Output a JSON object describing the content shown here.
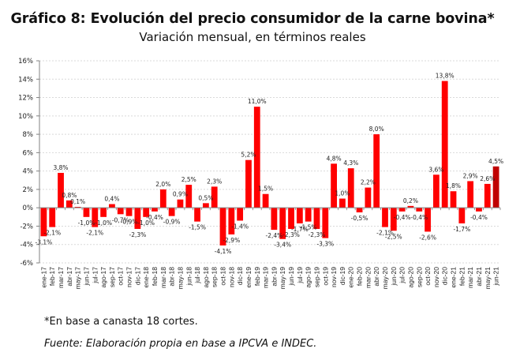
{
  "header": {
    "title": "Gráfico 8: Evolución del precio consumidor de la carne bovina*",
    "subtitle": "Variación mensual, en términos reales"
  },
  "footer": {
    "note": "*En base a canasta 18 cortes.",
    "source": "Fuente: Elaboración propia en base a IPCVA e INDEC."
  },
  "colors": {
    "bar": "#ff0000",
    "highlight_bar": "#c00000",
    "gridline": "#d9d9d9",
    "axis": "#808080"
  },
  "chart_data": {
    "type": "bar",
    "title": "Gráfico 8: Evolución del precio consumidor de la carne bovina*",
    "subtitle": "Variación mensual, en términos reales",
    "xlabel": "",
    "ylabel": "",
    "ylim": [
      -6,
      16
    ],
    "ytick_step": 2,
    "ytick_labels": [
      "-6%",
      "-4%",
      "-2%",
      "0%",
      "2%",
      "4%",
      "6%",
      "8%",
      "10%",
      "12%",
      "14%",
      "16%"
    ],
    "grid": true,
    "legend": "none",
    "highlight_index": 53,
    "categories": [
      "ene-17",
      "feb-17",
      "mar-17",
      "abr-17",
      "may-17",
      "jun-17",
      "jul-17",
      "ago-17",
      "sep-17",
      "oct-17",
      "nov-17",
      "dic-17",
      "ene-18",
      "feb-18",
      "mar-18",
      "abr-18",
      "may-18",
      "jun-18",
      "jul-18",
      "ago-18",
      "sep-18",
      "oct-18",
      "nov-18",
      "dic-18",
      "ene-19",
      "feb-19",
      "mar-19",
      "abr-19",
      "may-19",
      "jun-19",
      "jul-19",
      "ago-19",
      "sep-19",
      "oct-19",
      "nov-19",
      "dic-19",
      "ene-20",
      "feb-20",
      "mar-20",
      "abr-20",
      "may-20",
      "jun-20",
      "jul-20",
      "ago-20",
      "sep-20",
      "oct-20",
      "nov-20",
      "dic-20",
      "ene-21",
      "feb-21",
      "mar-21",
      "abr-21",
      "may-21",
      "jun-21"
    ],
    "values": [
      -3.1,
      -2.1,
      3.8,
      0.8,
      0.1,
      -1.0,
      -2.1,
      -1.0,
      0.4,
      -0.7,
      -0.9,
      -2.3,
      -1.0,
      -0.4,
      2.0,
      -0.9,
      0.9,
      2.5,
      -1.5,
      0.5,
      2.3,
      -4.1,
      -2.9,
      -1.4,
      5.2,
      11.0,
      1.5,
      -2.4,
      -3.4,
      -2.3,
      -1.7,
      -1.5,
      -2.3,
      -3.3,
      4.8,
      1.0,
      4.3,
      -0.5,
      2.2,
      8.0,
      -2.1,
      -2.5,
      -0.4,
      0.2,
      -0.4,
      -2.6,
      3.6,
      13.8,
      1.8,
      -1.7,
      2.9,
      -0.4,
      2.6,
      4.5
    ],
    "data_labels": [
      "-3,1%",
      "-2,1%",
      "3,8%",
      "0,8%",
      "0,1%",
      "-1,0%",
      "-2,1%",
      "-1,0%",
      "0,4%",
      "-0,7%",
      "-0,9%",
      "-2,3%",
      "-1,0%",
      "-0,4%",
      "2,0%",
      "-0,9%",
      "0,9%",
      "2,5%",
      "-1,5%",
      "0,5%",
      "2,3%",
      "-4,1%",
      "-2,9%",
      "-1,4%",
      "5,2%",
      "11,0%",
      "1,5%",
      "-2,4%",
      "-3,4%",
      "-2,3%",
      "-1,7%",
      "-1,5%",
      "-2,3%",
      "-3,3%",
      "4,8%",
      "1,0%",
      "4,3%",
      "-0,5%",
      "2,2%",
      "8,0%",
      "-2,1%",
      "-2,5%",
      "-0,4%",
      "0,2%",
      "-0,4%",
      "-2,6%",
      "3,6%",
      "13,8%",
      "1,8%",
      "-1,7%",
      "2,9%",
      "-0,4%",
      "2,6%",
      "4,5%"
    ]
  }
}
